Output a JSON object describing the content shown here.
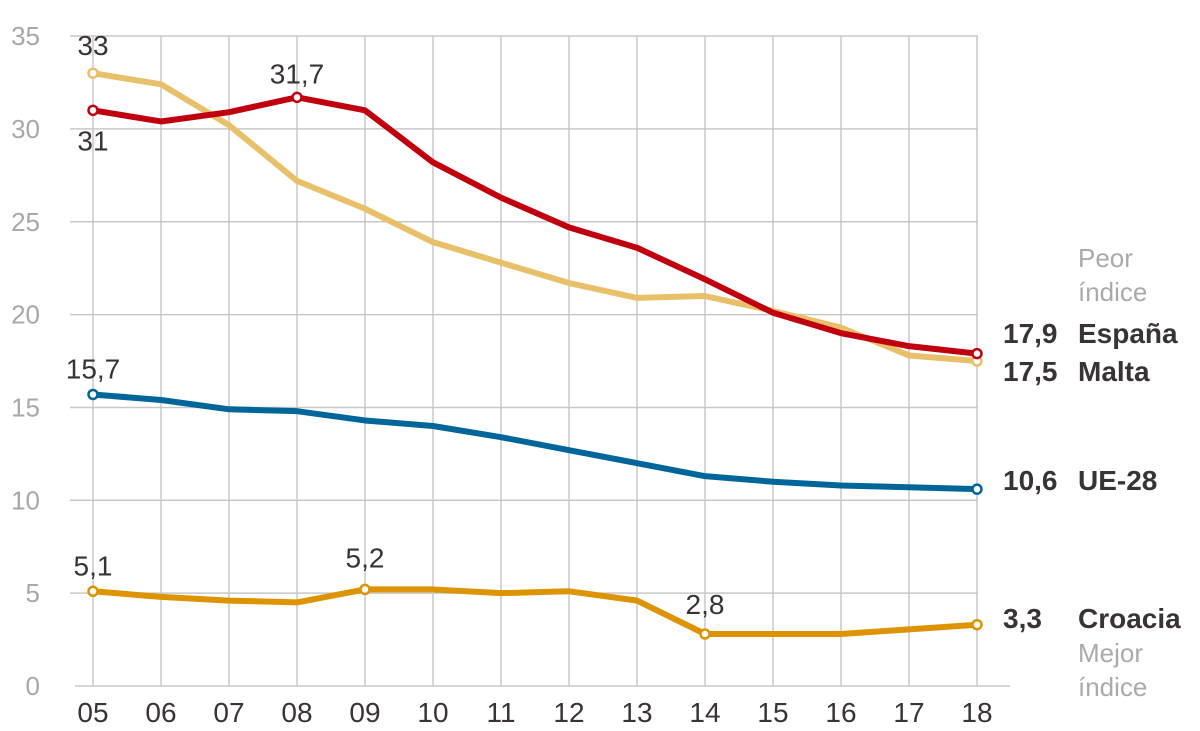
{
  "chart_data": {
    "type": "line",
    "title": "",
    "xlabel": "",
    "ylabel": "",
    "ylim": [
      0,
      35
    ],
    "yticks": [
      "0",
      "5",
      "10",
      "15",
      "20",
      "25",
      "30",
      "35"
    ],
    "x": [
      "05",
      "06",
      "07",
      "08",
      "09",
      "10",
      "11",
      "12",
      "13",
      "14",
      "15",
      "16",
      "17",
      "18"
    ],
    "grid": true,
    "series": [
      {
        "name": "Malta",
        "color": "#e9c06a",
        "values": [
          33,
          32.4,
          30.2,
          27.2,
          25.7,
          23.9,
          22.8,
          21.7,
          20.9,
          21.0,
          20.2,
          19.3,
          17.8,
          17.5
        ],
        "end_label": "17,5",
        "end_name": "Malta"
      },
      {
        "name": "España",
        "color": "#c0000f",
        "values": [
          31,
          30.4,
          30.9,
          31.7,
          31.0,
          28.2,
          26.3,
          24.7,
          23.6,
          21.9,
          20.1,
          19.0,
          18.3,
          17.9
        ],
        "end_label": "17,9",
        "end_name": "España"
      },
      {
        "name": "UE-28",
        "color": "#006699",
        "values": [
          15.7,
          15.4,
          14.9,
          14.8,
          14.3,
          14.0,
          13.4,
          12.7,
          12.0,
          11.3,
          11.0,
          10.8,
          10.7,
          10.6
        ],
        "end_label": "10,6",
        "end_name": "UE-28"
      },
      {
        "name": "Croacia",
        "color": "#dd9400",
        "values": [
          5.1,
          4.8,
          4.6,
          4.5,
          5.2,
          5.2,
          5.0,
          5.1,
          4.6,
          2.8,
          2.8,
          2.8,
          3.05,
          3.3
        ],
        "end_label": "3,3",
        "end_name": "Croacia"
      }
    ],
    "annotations": [
      {
        "series": "Malta",
        "x": "05",
        "text": "33"
      },
      {
        "series": "España",
        "x": "05",
        "text": "31"
      },
      {
        "series": "España",
        "x": "08",
        "text": "31,7"
      },
      {
        "series": "UE-28",
        "x": "05",
        "text": "15,7"
      },
      {
        "series": "Croacia",
        "x": "05",
        "text": "5,1"
      },
      {
        "series": "Croacia",
        "x": "09",
        "text": "5,2"
      },
      {
        "series": "Croacia",
        "x": "14",
        "text": "2,8"
      }
    ],
    "notes": {
      "worst": [
        "Peor",
        "índice"
      ],
      "best": [
        "Mejor",
        "índice"
      ]
    }
  }
}
